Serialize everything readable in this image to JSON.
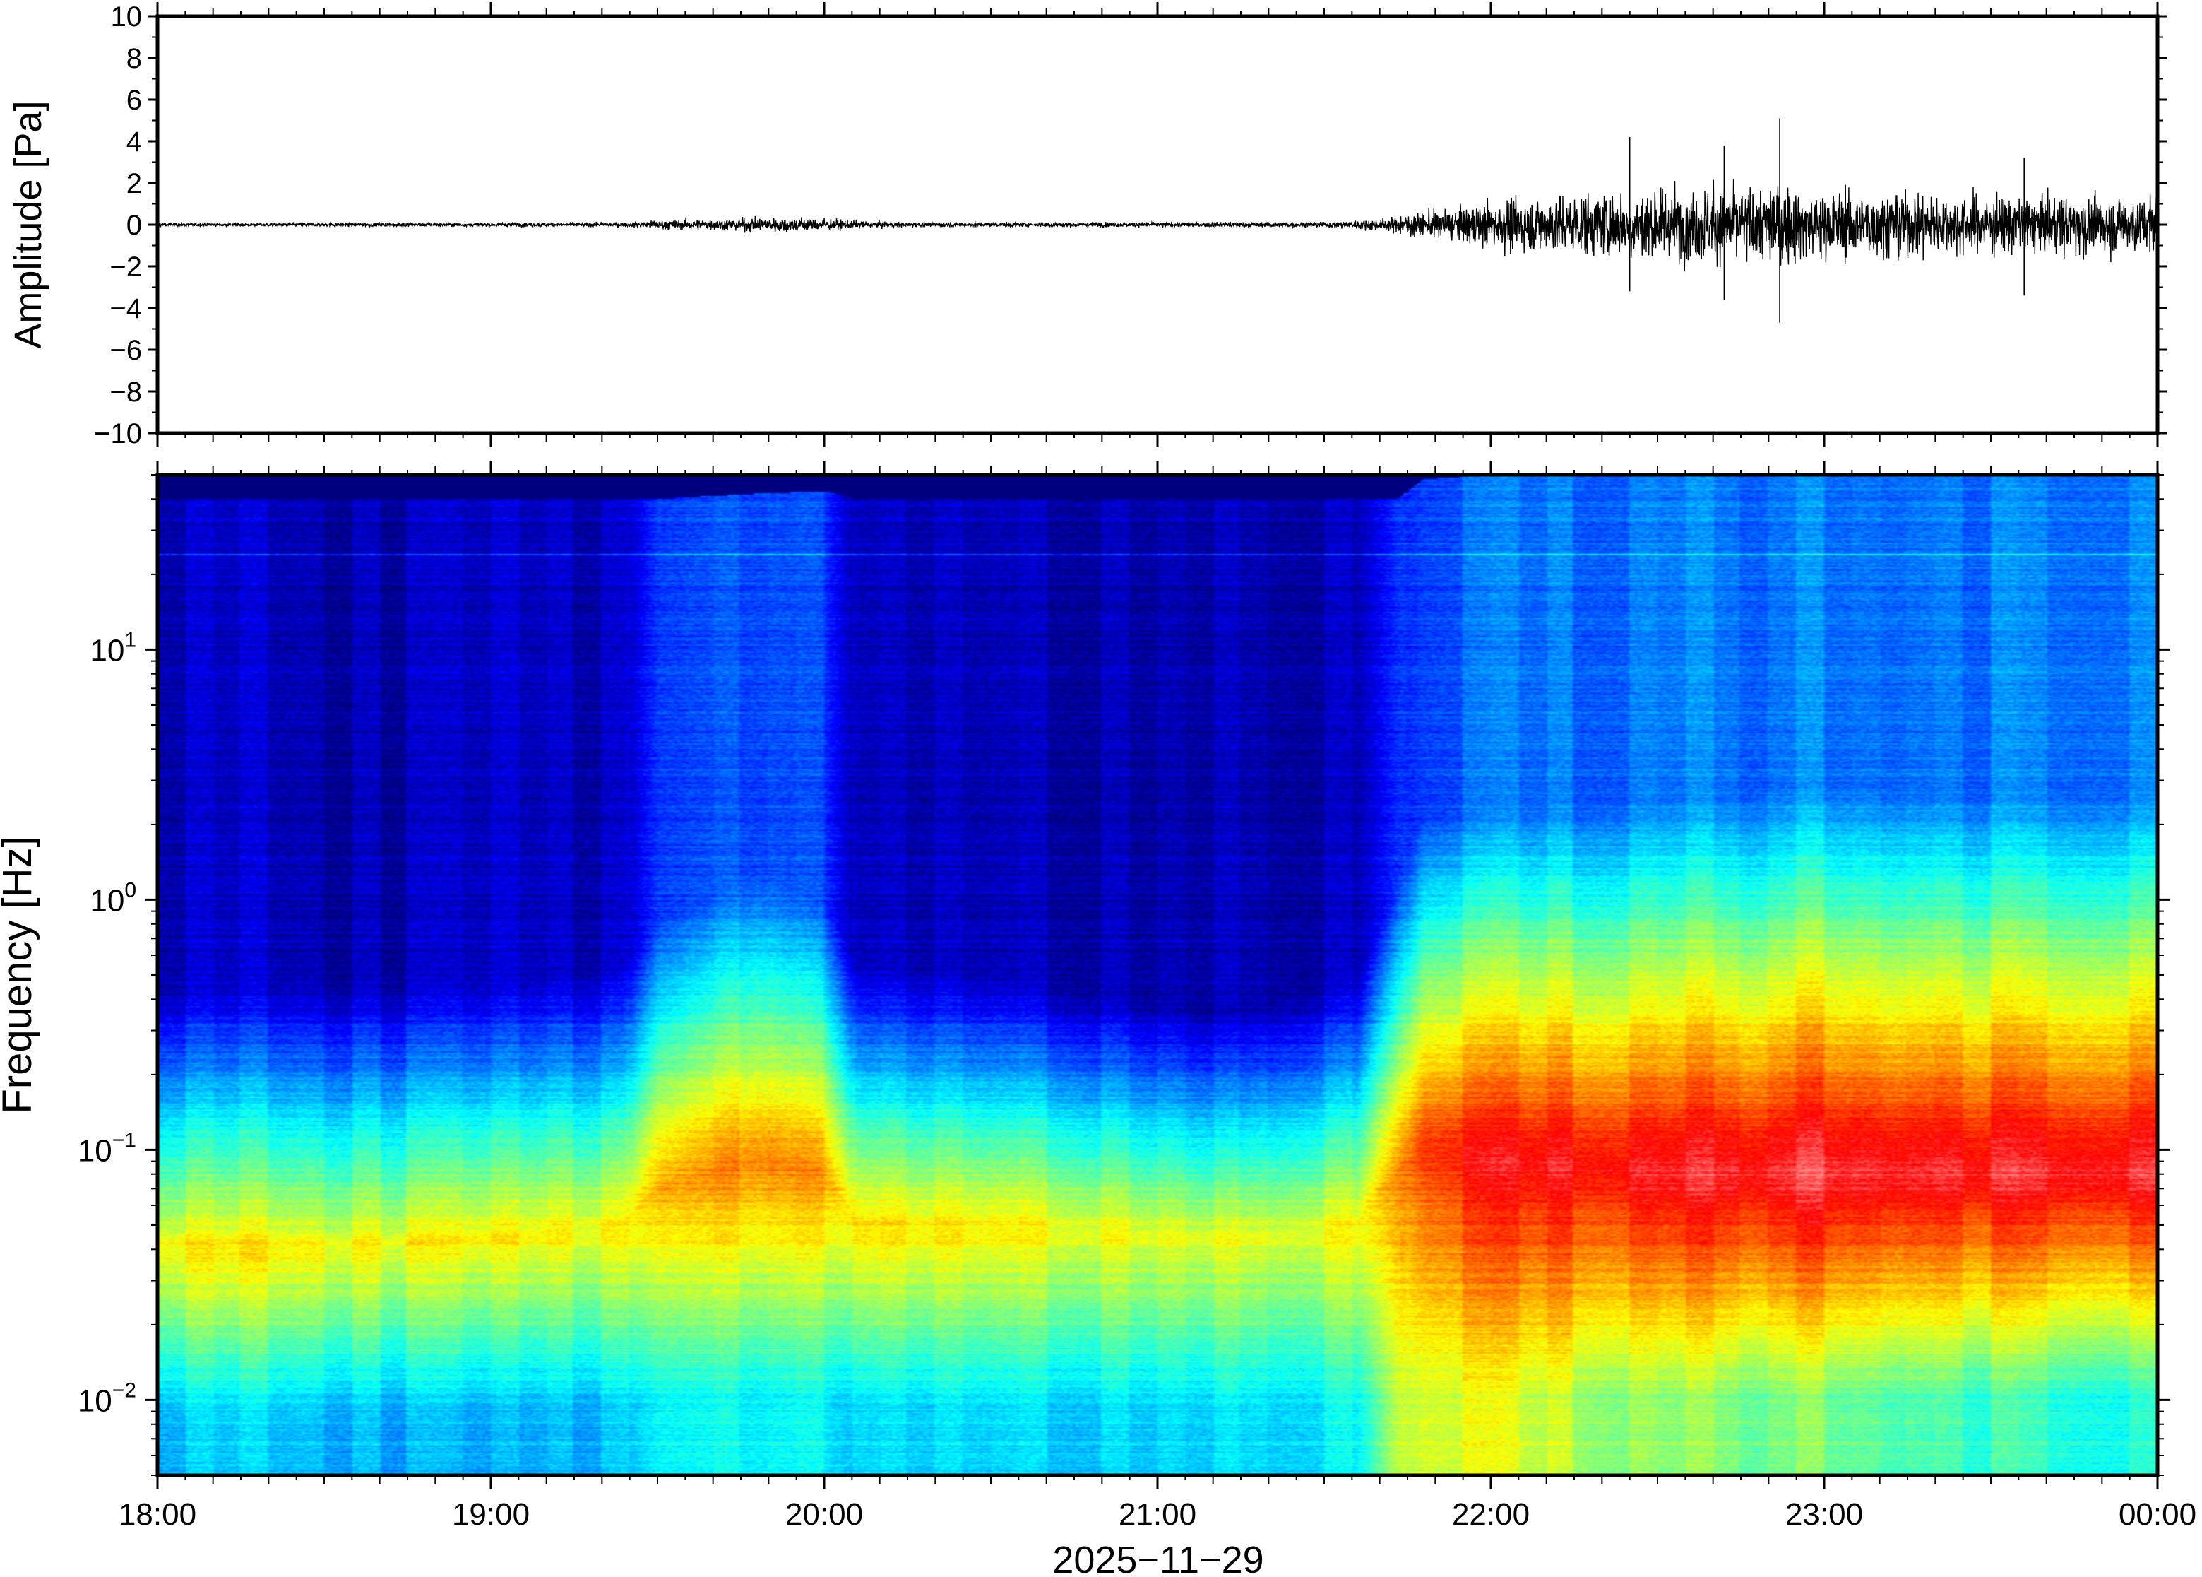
{
  "chart_data": [
    {
      "type": "line",
      "panel": "waveform",
      "ylabel": "Amplitude [Pa]",
      "ylim": [
        -10,
        10
      ],
      "yticks": [
        10,
        8,
        6,
        4,
        2,
        0,
        -2,
        -4,
        -6,
        -8,
        -10
      ],
      "ytick_labels": [
        "10",
        "8",
        "6",
        "4",
        "2",
        "0",
        "−2",
        "−4",
        "−6",
        "−8",
        "−10"
      ],
      "xlim": [
        "18:00",
        "00:00"
      ],
      "envelope": {
        "time_hours": [
          18.0,
          19.4,
          19.5,
          19.7,
          19.9,
          20.1,
          20.3,
          21.5,
          21.7,
          21.75,
          21.9,
          22.0,
          22.3,
          22.6,
          22.85,
          23.0,
          23.5,
          24.0
        ],
        "amplitude_pa": [
          0.12,
          0.15,
          0.35,
          0.45,
          0.6,
          0.3,
          0.15,
          0.2,
          0.5,
          0.9,
          1.2,
          1.8,
          2.5,
          2.8,
          3.0,
          2.6,
          2.2,
          2.2
        ]
      },
      "spikes": [
        {
          "time": "22:25",
          "max_pa": 4.2,
          "min_pa": -3.2
        },
        {
          "time": "22:42",
          "max_pa": 3.8,
          "min_pa": -3.6
        },
        {
          "time": "22:52",
          "max_pa": 5.1,
          "min_pa": -4.7
        },
        {
          "time": "23:36",
          "max_pa": 3.2,
          "min_pa": -3.4
        }
      ]
    },
    {
      "type": "heatmap",
      "panel": "spectrogram",
      "ylabel": "Frequency [Hz]",
      "yscale": "log",
      "ylim_hz": [
        0.005,
        50
      ],
      "ytick_labels": [
        {
          "base": "10",
          "exp": "1",
          "value": 10
        },
        {
          "base": "10",
          "exp": "0",
          "value": 1
        },
        {
          "base": "10",
          "exp": "−1",
          "value": 0.1
        },
        {
          "base": "10",
          "exp": "−2",
          "value": 0.01
        }
      ],
      "xlabel": "2025−11−29",
      "xticks": [
        "18:00",
        "19:00",
        "20:00",
        "21:00",
        "22:00",
        "23:00",
        "00:00"
      ],
      "colormap": "jet",
      "colormap_stops": [
        "#00007f",
        "#0000ff",
        "#007fff",
        "#00ffff",
        "#7fff7f",
        "#ffff00",
        "#ff7f00",
        "#ff0000",
        "#ff9090"
      ],
      "time_hours": [
        18.0,
        18.5,
        19.0,
        19.4,
        19.5,
        19.8,
        20.0,
        20.1,
        20.6,
        21.2,
        21.6,
        21.72,
        21.8,
        22.0,
        22.5,
        23.0,
        23.5,
        24.0
      ],
      "upper_cutoff_hz": [
        40,
        40,
        40,
        40,
        40,
        42,
        43,
        40,
        40,
        40,
        40,
        40,
        48,
        50,
        50,
        50,
        50,
        50
      ],
      "peak_frequency_hz": [
        0.04,
        0.04,
        0.045,
        0.05,
        0.07,
        0.09,
        0.08,
        0.05,
        0.05,
        0.045,
        0.05,
        0.08,
        0.1,
        0.09,
        0.08,
        0.08,
        0.08,
        0.08
      ],
      "peak_level": [
        0.64,
        0.64,
        0.62,
        0.64,
        0.72,
        0.76,
        0.74,
        0.66,
        0.64,
        0.6,
        0.64,
        0.76,
        0.86,
        0.9,
        0.92,
        0.95,
        0.93,
        0.93
      ],
      "high_freq_floor_level": [
        0.08,
        0.06,
        0.06,
        0.08,
        0.3,
        0.34,
        0.32,
        0.07,
        0.06,
        0.05,
        0.08,
        0.3,
        0.36,
        0.4,
        0.42,
        0.42,
        0.42,
        0.42
      ],
      "spectral_slope": [
        0.55,
        0.55,
        0.56,
        0.56,
        0.5,
        0.48,
        0.5,
        0.58,
        0.6,
        0.62,
        0.58,
        0.5,
        0.48,
        0.47,
        0.45,
        0.45,
        0.45,
        0.45
      ],
      "low_freq_level": [
        0.32,
        0.32,
        0.28,
        0.32,
        0.38,
        0.38,
        0.38,
        0.34,
        0.34,
        0.34,
        0.38,
        0.58,
        0.62,
        0.6,
        0.52,
        0.5,
        0.44,
        0.4
      ],
      "line_artifact_hz": 24
    }
  ]
}
